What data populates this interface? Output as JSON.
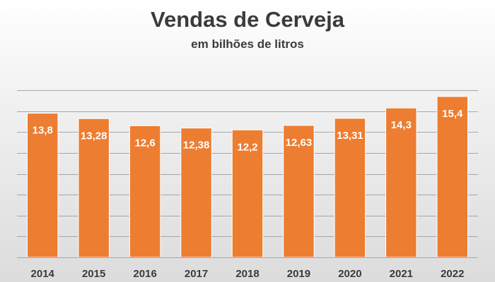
{
  "chart_data": {
    "type": "bar",
    "title": "Vendas de Cerveja",
    "subtitle": "em bilhões de litros",
    "categories": [
      "2014",
      "2015",
      "2016",
      "2017",
      "2018",
      "2019",
      "2020",
      "2021",
      "2022"
    ],
    "values": [
      13.8,
      13.28,
      12.6,
      12.38,
      12.2,
      12.63,
      13.31,
      14.3,
      15.4
    ],
    "data_labels": [
      "13,8",
      "13,28",
      "12,6",
      "12,38",
      "12,2",
      "12,63",
      "13,31",
      "14,3",
      "15,4"
    ],
    "xlabel": "",
    "ylabel": "",
    "ylim": [
      0,
      16
    ],
    "grid": true,
    "legend": "none",
    "colors": {
      "bar": "#ED7D31",
      "bar_edge": "#ffffff",
      "gridline": "#a6a6a6",
      "label_text": "#ffffff",
      "axis_text": "#3b3b3b",
      "title_text": "#3b3b3b"
    }
  }
}
